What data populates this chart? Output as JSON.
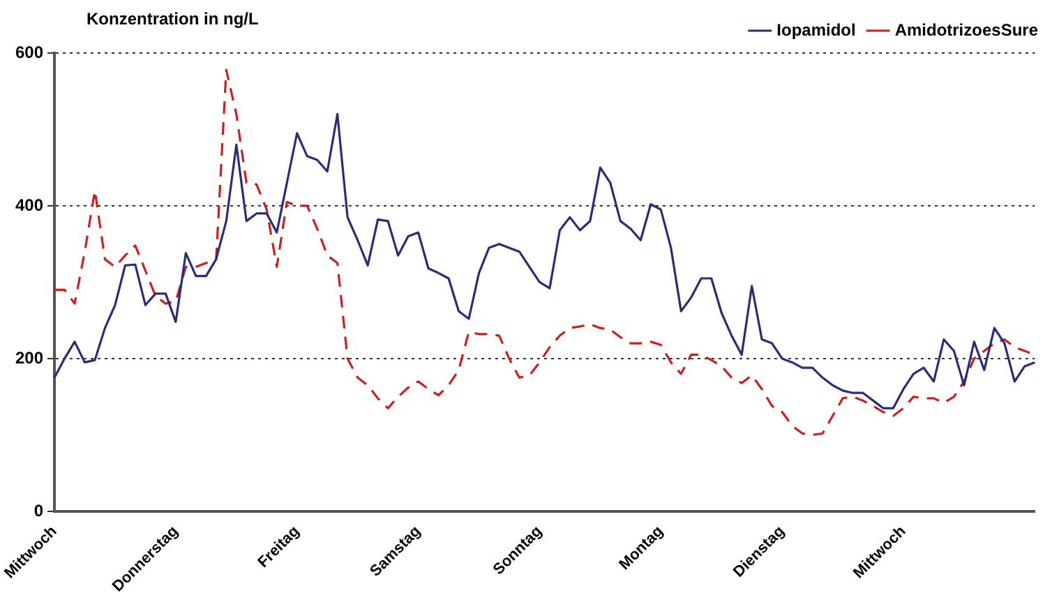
{
  "chart_data": {
    "type": "line",
    "ylabel": "Konzentration in ng/L",
    "categories": [
      "Mittwoch",
      null,
      null,
      null,
      null,
      null,
      null,
      null,
      null,
      null,
      null,
      null,
      "Donnerstag",
      null,
      null,
      null,
      null,
      null,
      null,
      null,
      null,
      null,
      null,
      null,
      "Freitag",
      null,
      null,
      null,
      null,
      null,
      null,
      null,
      null,
      null,
      null,
      null,
      "Samstag",
      null,
      null,
      null,
      null,
      null,
      null,
      null,
      null,
      null,
      null,
      null,
      "Sonntag",
      null,
      null,
      null,
      null,
      null,
      null,
      null,
      null,
      null,
      null,
      null,
      "Montag",
      null,
      null,
      null,
      null,
      null,
      null,
      null,
      null,
      null,
      null,
      null,
      "Dienstag",
      null,
      null,
      null,
      null,
      null,
      null,
      null,
      null,
      null,
      null,
      null,
      "Mittwoch",
      null,
      null,
      null,
      null,
      null,
      null,
      null,
      null,
      null,
      null,
      null,
      null,
      null
    ],
    "series": [
      {
        "name": "Iopamidol",
        "color": "#2b2b7a",
        "line_style": "solid",
        "values": [
          175,
          200,
          222,
          195,
          198,
          240,
          270,
          322,
          323,
          270,
          285,
          285,
          248,
          338,
          308,
          308,
          330,
          380,
          480,
          380,
          390,
          390,
          365,
          430,
          495,
          465,
          460,
          445,
          520,
          385,
          355,
          322,
          382,
          380,
          335,
          360,
          365,
          318,
          312,
          305,
          262,
          252,
          312,
          345,
          350,
          345,
          340,
          320,
          300,
          292,
          368,
          385,
          368,
          380,
          450,
          430,
          380,
          370,
          355,
          402,
          395,
          345,
          262,
          280,
          305,
          305,
          260,
          230,
          205,
          295,
          225,
          220,
          200,
          195,
          188,
          188,
          175,
          165,
          158,
          155,
          155,
          145,
          135,
          135,
          160,
          180,
          188,
          170,
          225,
          210,
          165,
          222,
          185,
          240,
          220,
          170,
          190,
          195
        ]
      },
      {
        "name": "AmidotrizoesSure",
        "color": "#cc1f1f",
        "line_style": "dashed",
        "values": [
          290,
          290,
          272,
          340,
          420,
          330,
          320,
          335,
          348,
          315,
          282,
          272,
          275,
          320,
          320,
          325,
          330,
          578,
          520,
          430,
          428,
          395,
          320,
          405,
          400,
          400,
          370,
          335,
          325,
          200,
          175,
          165,
          148,
          135,
          150,
          162,
          170,
          160,
          152,
          165,
          185,
          235,
          232,
          232,
          230,
          200,
          175,
          178,
          195,
          215,
          230,
          240,
          242,
          245,
          240,
          238,
          228,
          220,
          220,
          222,
          218,
          195,
          180,
          205,
          205,
          198,
          190,
          175,
          168,
          178,
          160,
          138,
          130,
          112,
          102,
          100,
          102,
          125,
          148,
          150,
          145,
          138,
          130,
          125,
          135,
          150,
          148,
          148,
          142,
          150,
          170,
          200,
          210,
          220,
          225,
          215,
          210,
          205
        ]
      }
    ],
    "ylim": [
      0,
      600
    ],
    "yticks": [
      0,
      200,
      400,
      600
    ],
    "grid": "y",
    "legend": "top right",
    "marker": "none"
  }
}
